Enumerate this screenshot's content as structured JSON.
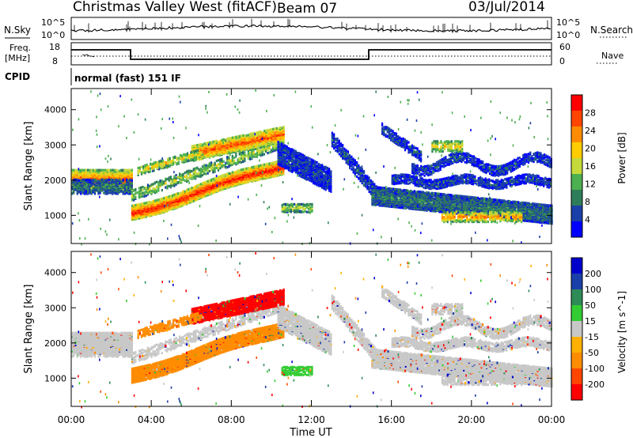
{
  "header": {
    "title": "Christmas Valley West (fitACF)",
    "beam": "Beam 07",
    "date": "03/Jul/2014"
  },
  "summary_panels": {
    "nsky_label": "N.Sky",
    "nsearch_label": "N.Search",
    "nsky_ticks": [
      "10^5",
      "10^0"
    ],
    "nsearch_ticks": [
      "10^5",
      "10^0"
    ],
    "freq_label_1": "Freq.",
    "freq_label_2": "[MHz]",
    "freq_ticks": [
      "18",
      "8"
    ],
    "nave_label": "Nave",
    "nave_ticks": [
      "60",
      "0"
    ],
    "cpid_label": "CPID",
    "cpid_text": "normal (fast) 151 IF"
  },
  "colors": {
    "power_scale": [
      "#0000ff",
      "#1a3fa8",
      "#2e7d5a",
      "#4caf50",
      "#c6d93a",
      "#ffcc00",
      "#ff8c00",
      "#ff4500",
      "#ff0000"
    ],
    "velocity_scale": [
      "#0000cc",
      "#1a3fa8",
      "#2e8b57",
      "#33cc33",
      "#c8c8c8",
      "#ffb000",
      "#ff8c00",
      "#ff4500",
      "#ff0000"
    ],
    "gray": "#c8c8c8"
  },
  "chart_data": [
    {
      "type": "heatmap",
      "title": "Power",
      "xlabel": "Time UT",
      "ylabel": "Slant Range [km]",
      "x_ticks": [
        "00:00",
        "04:00",
        "08:00",
        "12:00",
        "16:00",
        "20:00",
        "00:00"
      ],
      "y_ticks": [
        1000,
        2000,
        3000,
        4000
      ],
      "ylim": [
        200,
        4600
      ],
      "xlim_hours": [
        0,
        24
      ],
      "colorbar_label": "Power [dB]",
      "colorbar_ticks": [
        "28",
        "24",
        "20",
        "16",
        "12",
        "8",
        "4"
      ]
    },
    {
      "type": "heatmap",
      "title": "Velocity",
      "xlabel": "Time UT",
      "ylabel": "Slant Range [km]",
      "x_ticks": [
        "00:00",
        "04:00",
        "08:00",
        "12:00",
        "16:00",
        "20:00",
        "00:00"
      ],
      "y_ticks": [
        1000,
        2000,
        3000,
        4000
      ],
      "ylim": [
        200,
        4600
      ],
      "xlim_hours": [
        0,
        24
      ],
      "colorbar_label": "Velocity [m s^-1]",
      "colorbar_ticks": [
        "200",
        "100",
        "50",
        "15",
        "-15",
        "-50",
        "-100",
        "-200"
      ]
    }
  ]
}
